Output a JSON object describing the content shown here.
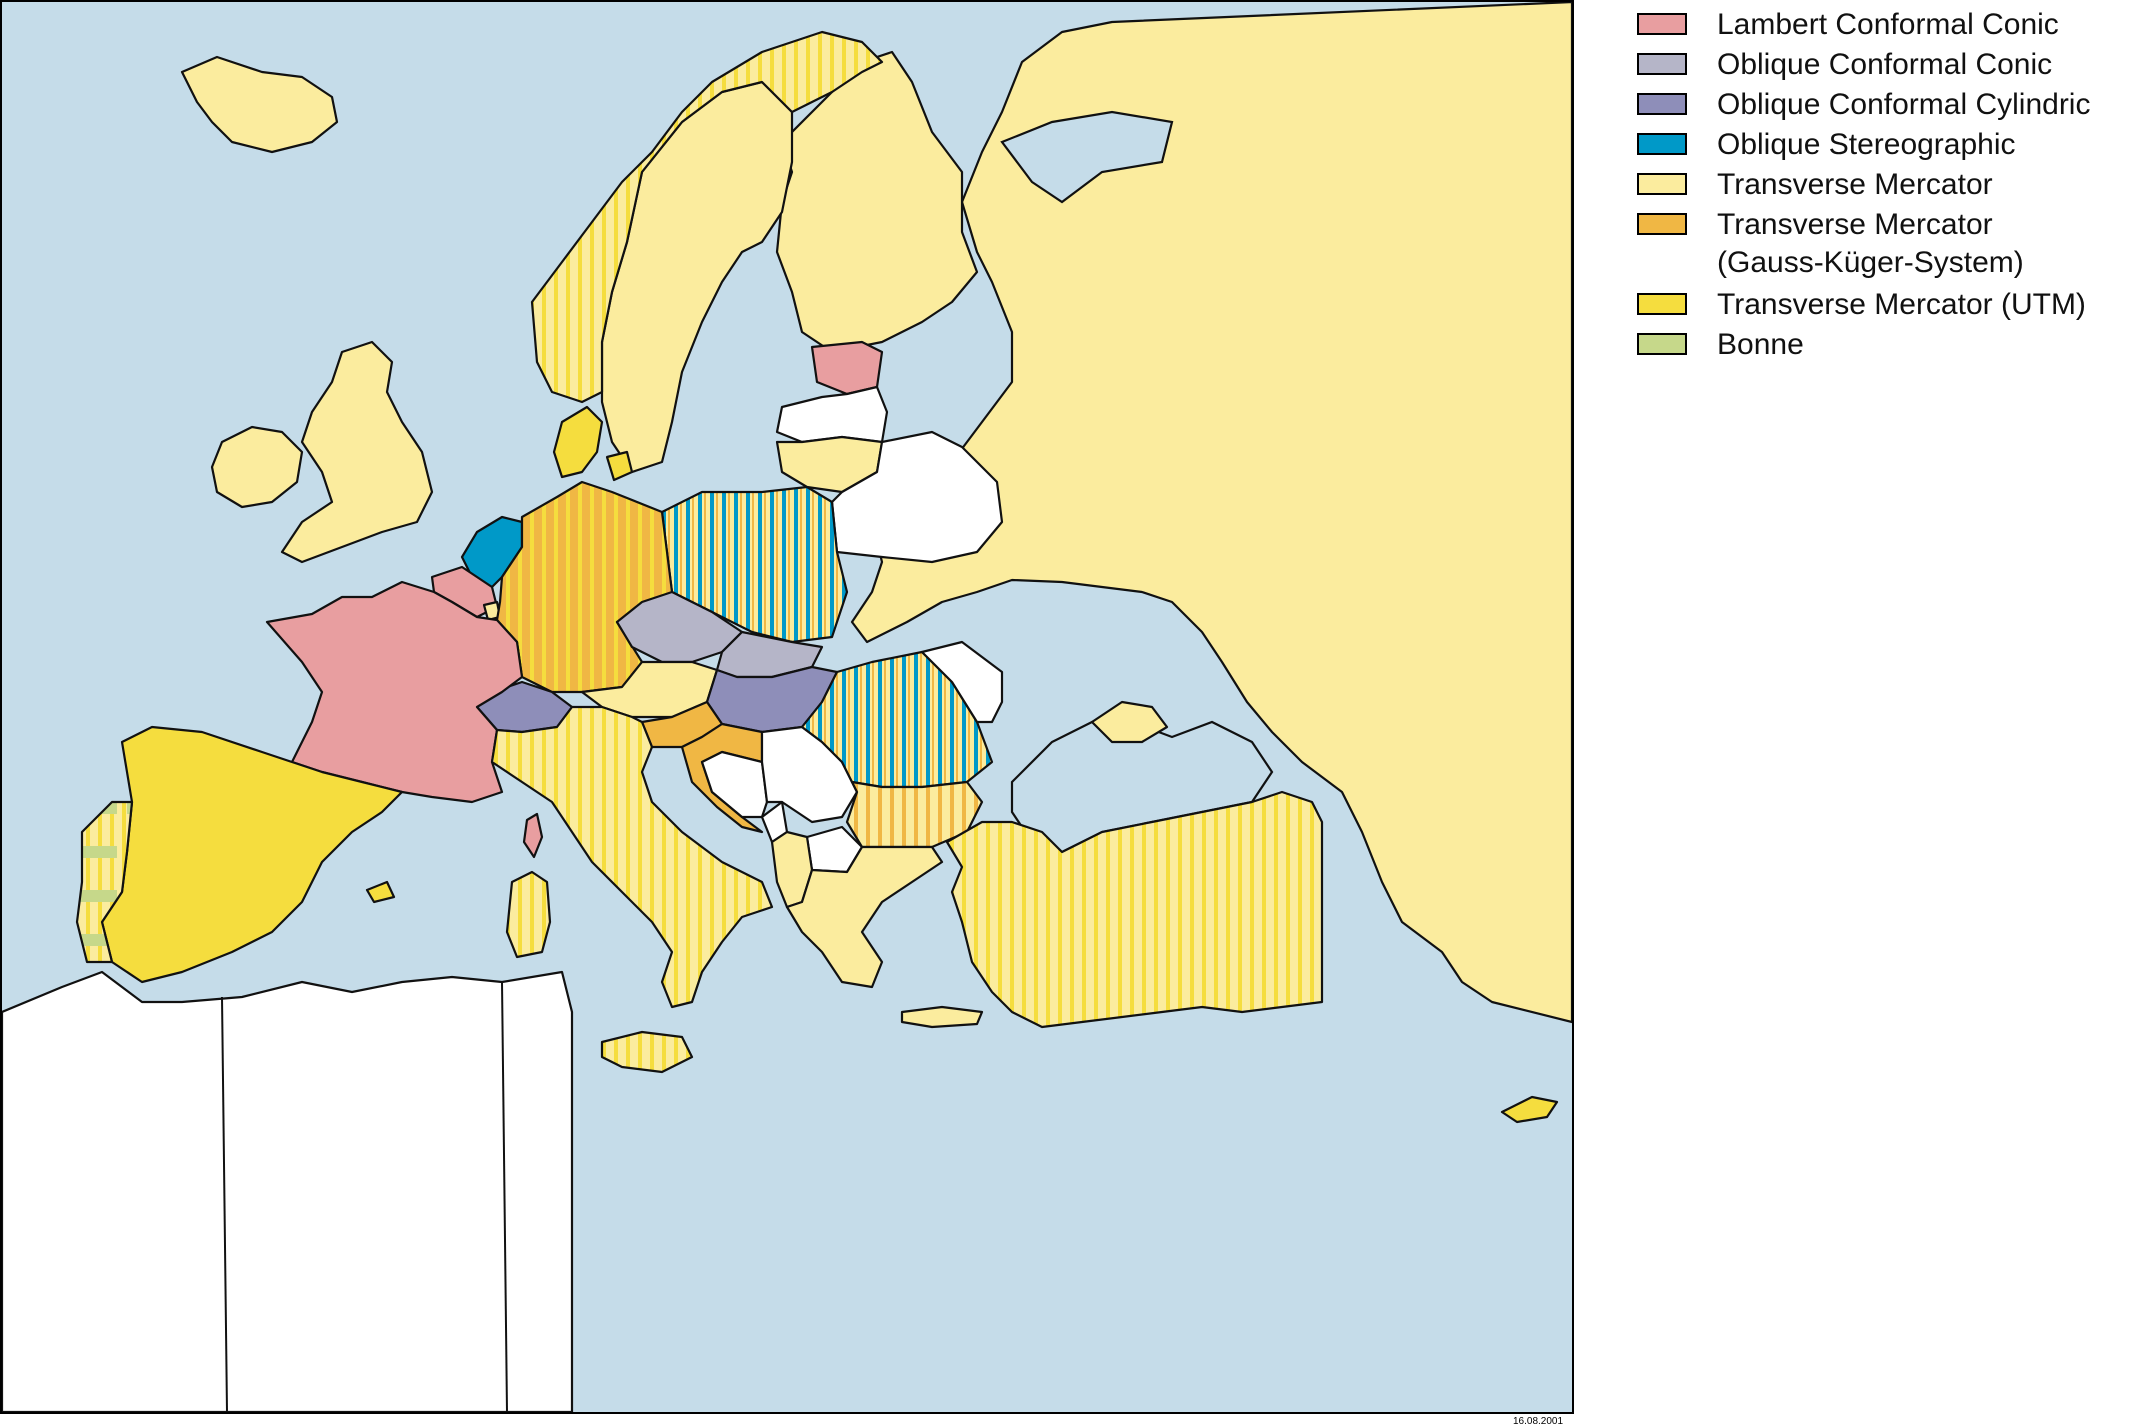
{
  "legend": {
    "items": [
      {
        "label": "Lambert Conformal Conic",
        "sub": "",
        "color": "#e89ea0"
      },
      {
        "label": "Oblique Conformal Conic",
        "sub": "",
        "color": "#b5b5c8"
      },
      {
        "label": "Oblique Conformal Cylindric",
        "sub": "",
        "color": "#8e8eb9"
      },
      {
        "label": "Oblique Stereographic",
        "sub": "",
        "color": "#0099c8"
      },
      {
        "label": "Transverse Mercator",
        "sub": "",
        "color": "#fbec9e"
      },
      {
        "label": "Transverse Mercator",
        "sub": "(Gauss-Küger-System)",
        "color": "#f0b744"
      },
      {
        "label": "Transverse Mercator (UTM)",
        "sub": "",
        "color": "#f5dd3e"
      },
      {
        "label": "Bonne",
        "sub": "",
        "color": "#c6d88a"
      }
    ]
  },
  "map": {
    "date": "16.08.2001",
    "colors": {
      "sea": "#c5dce9",
      "lambert": "#e89ea0",
      "oblique_conic": "#b5b5c8",
      "oblique_cylindric": "#8e8eb9",
      "oblique_stereo": "#0099c8",
      "tm": "#fbec9e",
      "gauss_kruger": "#f0b744",
      "utm": "#f5dd3e",
      "bonne": "#c6d88a",
      "unmapped": "#ffffff"
    },
    "regions": [
      {
        "name": "Iceland",
        "system": "tm"
      },
      {
        "name": "Norway",
        "system": "tm/utm"
      },
      {
        "name": "Sweden",
        "system": "tm"
      },
      {
        "name": "Finland",
        "system": "tm"
      },
      {
        "name": "Russia",
        "system": "tm"
      },
      {
        "name": "Estonia",
        "system": "lambert"
      },
      {
        "name": "Latvia",
        "system": "unmapped"
      },
      {
        "name": "Lithuania",
        "system": "tm"
      },
      {
        "name": "Belarus",
        "system": "unmapped"
      },
      {
        "name": "Ukraine",
        "system": "tm"
      },
      {
        "name": "Ireland",
        "system": "tm"
      },
      {
        "name": "United Kingdom",
        "system": "tm"
      },
      {
        "name": "Denmark",
        "system": "utm"
      },
      {
        "name": "Netherlands",
        "system": "oblique_stereo"
      },
      {
        "name": "Belgium",
        "system": "lambert"
      },
      {
        "name": "Luxembourg",
        "system": "tm"
      },
      {
        "name": "Germany",
        "system": "gauss_kruger/utm"
      },
      {
        "name": "Poland",
        "system": "oblique_stereo/gauss_kruger"
      },
      {
        "name": "France",
        "system": "lambert"
      },
      {
        "name": "Czech Republic",
        "system": "oblique_conic"
      },
      {
        "name": "Slovakia",
        "system": "oblique_conic"
      },
      {
        "name": "Austria",
        "system": "tm"
      },
      {
        "name": "Switzerland",
        "system": "oblique_cylindric"
      },
      {
        "name": "Hungary",
        "system": "oblique_cylindric"
      },
      {
        "name": "Slovenia",
        "system": "gauss_kruger"
      },
      {
        "name": "Croatia",
        "system": "gauss_kruger"
      },
      {
        "name": "Bosnia",
        "system": "unmapped"
      },
      {
        "name": "Serbia",
        "system": "unmapped"
      },
      {
        "name": "Montenegro",
        "system": "unmapped"
      },
      {
        "name": "Macedonia",
        "system": "unmapped"
      },
      {
        "name": "Albania",
        "system": "tm"
      },
      {
        "name": "Romania",
        "system": "oblique_stereo/tm"
      },
      {
        "name": "Moldova",
        "system": "unmapped"
      },
      {
        "name": "Bulgaria",
        "system": "gauss_kruger/tm"
      },
      {
        "name": "Greece",
        "system": "tm"
      },
      {
        "name": "Turkey",
        "system": "tm/utm"
      },
      {
        "name": "Italy",
        "system": "tm/utm"
      },
      {
        "name": "Corsica",
        "system": "lambert"
      },
      {
        "name": "Sardinia",
        "system": "tm/utm"
      },
      {
        "name": "Sicily",
        "system": "tm/utm"
      },
      {
        "name": "Spain",
        "system": "utm"
      },
      {
        "name": "Portugal",
        "system": "tm/bonne"
      },
      {
        "name": "North Africa",
        "system": "unmapped"
      },
      {
        "name": "Cyprus",
        "system": "utm"
      }
    ]
  }
}
